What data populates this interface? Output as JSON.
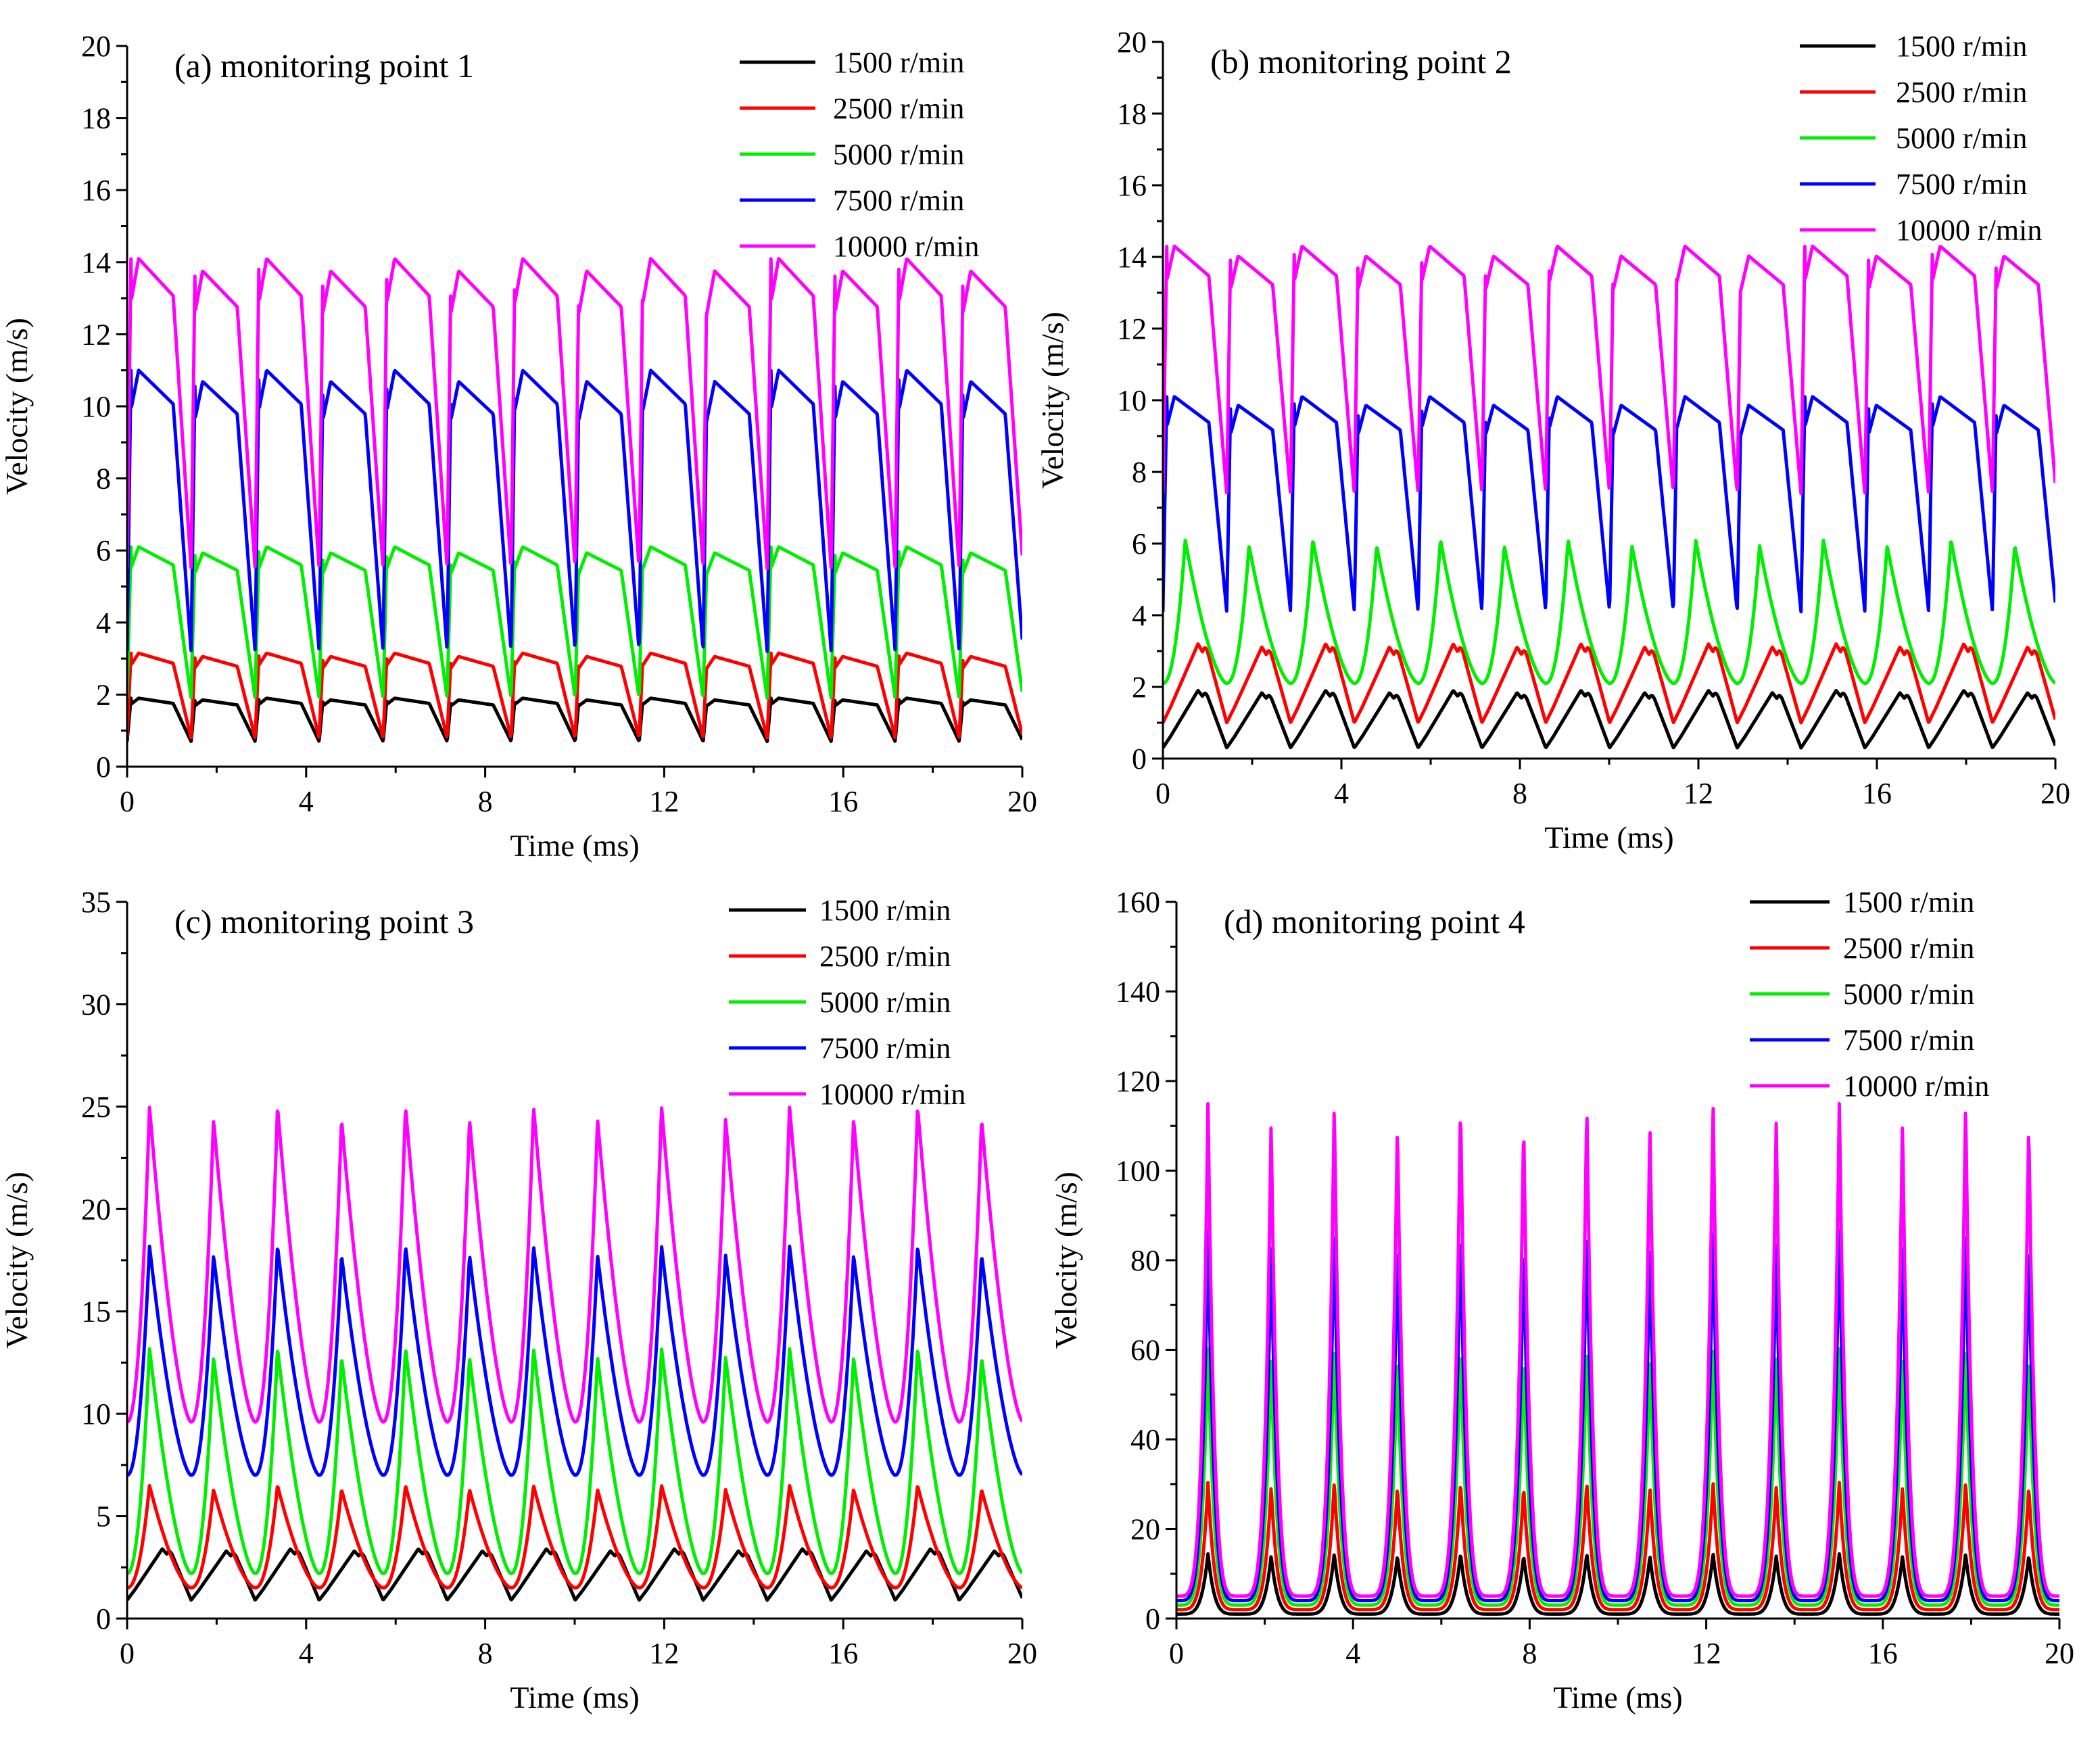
{
  "figure": {
    "series_colors": {
      "1500 r/min": "#000000",
      "2500 r/min": "#ff0000",
      "5000 r/min": "#00ee00",
      "7500 r/min": "#0000ff",
      "10000 r/min": "#ff00ff"
    }
  },
  "chart_data": [
    {
      "type": "line",
      "title": "(a) monitoring point 1",
      "xlabel": "Time (ms)",
      "ylabel": "Velocity (m/s)",
      "xlim": [
        0,
        20
      ],
      "ylim": [
        0,
        20
      ],
      "xticks": [
        0,
        4,
        8,
        12,
        16,
        20
      ],
      "yticks": [
        0,
        2,
        4,
        6,
        8,
        10,
        12,
        14,
        16,
        18,
        20
      ],
      "period_ms": 1.43,
      "legend": [
        "1500 r/min",
        "2500 r/min",
        "5000 r/min",
        "7500 r/min",
        "10000 r/min"
      ],
      "series": [
        {
          "name": "1500 r/min",
          "color": "#000000",
          "min": 0.7,
          "max": 1.9,
          "shape": "plateau"
        },
        {
          "name": "2500 r/min",
          "color": "#ff0000",
          "min": 0.8,
          "max": 3.15,
          "shape": "plateau"
        },
        {
          "name": "5000 r/min",
          "color": "#00ee00",
          "min": 1.9,
          "max": 6.1,
          "shape": "plateau"
        },
        {
          "name": "7500 r/min",
          "color": "#0000ff",
          "min": 3.2,
          "max": 11.0,
          "shape": "plateau"
        },
        {
          "name": "10000 r/min",
          "color": "#ff00ff",
          "min": 5.5,
          "max": 14.1,
          "shape": "plateau"
        }
      ]
    },
    {
      "type": "line",
      "title": "(b) monitoring point 2",
      "xlabel": "Time (ms)",
      "ylabel": "Velocity (m/s)",
      "xlim": [
        0,
        20
      ],
      "ylim": [
        0,
        20
      ],
      "xticks": [
        0,
        4,
        8,
        12,
        16,
        20
      ],
      "yticks": [
        0,
        2,
        4,
        6,
        8,
        10,
        12,
        14,
        16,
        18,
        20
      ],
      "period_ms": 1.43,
      "legend": [
        "1500 r/min",
        "2500 r/min",
        "5000 r/min",
        "7500 r/min",
        "10000 r/min"
      ],
      "series": [
        {
          "name": "1500 r/min",
          "color": "#000000",
          "min": 0.3,
          "max": 1.9,
          "shape": "ramp"
        },
        {
          "name": "2500 r/min",
          "color": "#ff0000",
          "min": 1.0,
          "max": 3.2,
          "shape": "ramp"
        },
        {
          "name": "5000 r/min",
          "color": "#00ee00",
          "min": 2.1,
          "max": 6.1,
          "shape": "peak"
        },
        {
          "name": "7500 r/min",
          "color": "#0000ff",
          "min": 4.1,
          "max": 10.1,
          "shape": "plateau"
        },
        {
          "name": "10000 r/min",
          "color": "#ff00ff",
          "min": 7.4,
          "max": 14.3,
          "shape": "plateau"
        }
      ]
    },
    {
      "type": "line",
      "title": "(c) monitoring point 3",
      "xlabel": "Time (ms)",
      "ylabel": "Velocity (m/s)",
      "xlim": [
        0,
        20
      ],
      "ylim": [
        0,
        35
      ],
      "xticks": [
        0,
        4,
        8,
        12,
        16,
        20
      ],
      "yticks": [
        0,
        5,
        10,
        15,
        20,
        25,
        30,
        35
      ],
      "period_ms": 1.43,
      "legend": [
        "1500 r/min",
        "2500 r/min",
        "5000 r/min",
        "7500 r/min",
        "10000 r/min"
      ],
      "series": [
        {
          "name": "1500 r/min",
          "color": "#000000",
          "min": 0.9,
          "max": 3.4,
          "shape": "ramp"
        },
        {
          "name": "2500 r/min",
          "color": "#ff0000",
          "min": 1.5,
          "max": 6.5,
          "shape": "peak"
        },
        {
          "name": "5000 r/min",
          "color": "#00ee00",
          "min": 2.2,
          "max": 13.2,
          "shape": "peak"
        },
        {
          "name": "7500 r/min",
          "color": "#0000ff",
          "min": 7.0,
          "max": 18.2,
          "shape": "peak"
        },
        {
          "name": "10000 r/min",
          "color": "#ff00ff",
          "min": 9.6,
          "max": 25.0,
          "shape": "peak"
        }
      ]
    },
    {
      "type": "line",
      "title": "(d) monitoring point 4",
      "xlabel": "Time (ms)",
      "ylabel": "Velocity (m/s)",
      "xlim": [
        0,
        20
      ],
      "ylim": [
        0,
        160
      ],
      "xticks": [
        0,
        4,
        8,
        12,
        16,
        20
      ],
      "yticks": [
        0,
        20,
        40,
        60,
        80,
        100,
        120,
        140,
        160
      ],
      "period_ms": 1.43,
      "legend": [
        "1500 r/min",
        "2500 r/min",
        "5000 r/min",
        "7500 r/min",
        "10000 r/min"
      ],
      "series": [
        {
          "name": "1500 r/min",
          "color": "#000000",
          "min": 1.0,
          "max": 14.5,
          "shape": "spike"
        },
        {
          "name": "2500 r/min",
          "color": "#ff0000",
          "min": 2.0,
          "max": 30.5,
          "shape": "spike"
        },
        {
          "name": "5000 r/min",
          "color": "#00ee00",
          "min": 3.0,
          "max": 60.5,
          "shape": "spike"
        },
        {
          "name": "7500 r/min",
          "color": "#0000ff",
          "min": 4.0,
          "max": 87.0,
          "shape": "spike"
        },
        {
          "name": "10000 r/min",
          "color": "#ff00ff",
          "min": 5.0,
          "max": 115.5,
          "shape": "spike"
        }
      ]
    }
  ]
}
